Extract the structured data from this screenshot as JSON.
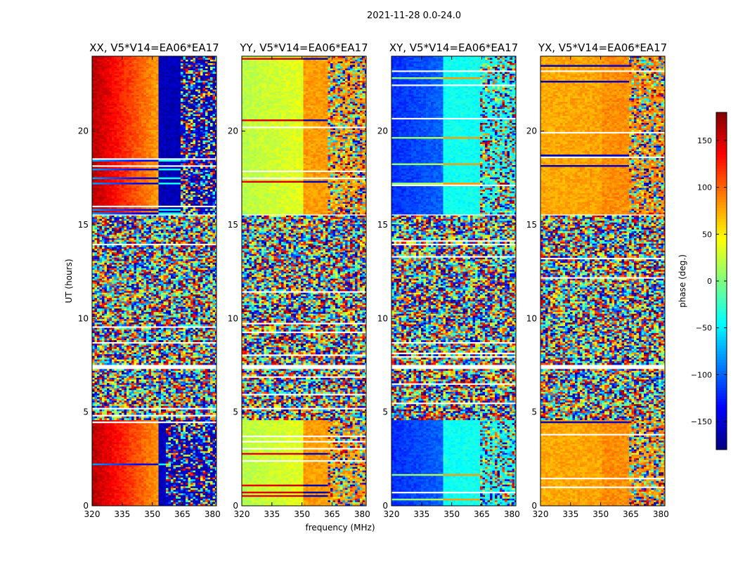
{
  "figure": {
    "title": "2021-11-28 0.0-24.0",
    "xlabel": "frequency (MHz)",
    "ylabel": "UT (hours)"
  },
  "chart_data": {
    "type": "heatmap",
    "title": "2021-11-28 0.0-24.0",
    "xlabel": "frequency (MHz)",
    "ylabel": "UT (hours)",
    "xlim": [
      320,
      382
    ],
    "ylim": [
      0,
      24
    ],
    "xticks": [
      320,
      335,
      350,
      365,
      380
    ],
    "yticks": [
      0,
      5,
      10,
      15,
      20
    ],
    "panels": [
      {
        "title": "XX, V5*V14=EA06*EA17",
        "segments": [
          {
            "t_start": 0.0,
            "t_end": 4.6,
            "state": "coherent",
            "low_phase": 160,
            "high_phase": -160,
            "transition_mhz": 353,
            "noisy_above_mhz": 356
          },
          {
            "t_start": 4.6,
            "t_end": 7.3,
            "state": "noise"
          },
          {
            "t_start": 7.6,
            "t_end": 15.5,
            "state": "noise"
          },
          {
            "t_start": 15.6,
            "t_end": 24.0,
            "state": "coherent",
            "low_phase": 160,
            "high_phase": -160,
            "transition_mhz": 352,
            "noisy_above_mhz": 363
          }
        ]
      },
      {
        "title": "YY, V5*V14=EA06*EA17",
        "segments": [
          {
            "t_start": 0.0,
            "t_end": 4.6,
            "state": "coherent",
            "low_phase": 20,
            "high_phase": 80,
            "transition_mhz": 350,
            "noisy_above_mhz": 362
          },
          {
            "t_start": 4.6,
            "t_end": 7.3,
            "state": "noise"
          },
          {
            "t_start": 7.6,
            "t_end": 15.5,
            "state": "noise"
          },
          {
            "t_start": 15.6,
            "t_end": 24.0,
            "state": "coherent",
            "low_phase": 20,
            "high_phase": 80,
            "transition_mhz": 350,
            "noisy_above_mhz": 362
          }
        ]
      },
      {
        "title": "XY, V5*V14=EA06*EA17",
        "segments": [
          {
            "t_start": 0.0,
            "t_end": 4.6,
            "state": "coherent",
            "low_phase": -120,
            "high_phase": -40,
            "transition_mhz": 345,
            "noisy_above_mhz": 364
          },
          {
            "t_start": 4.6,
            "t_end": 7.3,
            "state": "noise"
          },
          {
            "t_start": 7.6,
            "t_end": 15.5,
            "state": "noise"
          },
          {
            "t_start": 15.6,
            "t_end": 24.0,
            "state": "coherent",
            "low_phase": -120,
            "high_phase": -40,
            "transition_mhz": 345,
            "noisy_above_mhz": 364
          }
        ]
      },
      {
        "title": "YX, V5*V14=EA06*EA17",
        "segments": [
          {
            "t_start": 0.0,
            "t_end": 4.6,
            "state": "coherent",
            "low_phase": 75,
            "high_phase": 85,
            "transition_mhz": 350,
            "noisy_above_mhz": 364
          },
          {
            "t_start": 4.6,
            "t_end": 7.3,
            "state": "noise"
          },
          {
            "t_start": 7.6,
            "t_end": 15.5,
            "state": "noise"
          },
          {
            "t_start": 15.6,
            "t_end": 24.0,
            "state": "coherent",
            "low_phase": 75,
            "high_phase": 85,
            "transition_mhz": 350,
            "noisy_above_mhz": 364
          }
        ]
      }
    ],
    "colorbar": {
      "label": "phase (deg.)",
      "colormap": "jet",
      "range": [
        -180,
        180
      ],
      "ticks": [
        150,
        100,
        50,
        0,
        -50,
        -100,
        -150
      ],
      "tick_labels": [
        "150",
        "100",
        "50",
        "0",
        "−50",
        "−100",
        "−150"
      ]
    }
  }
}
